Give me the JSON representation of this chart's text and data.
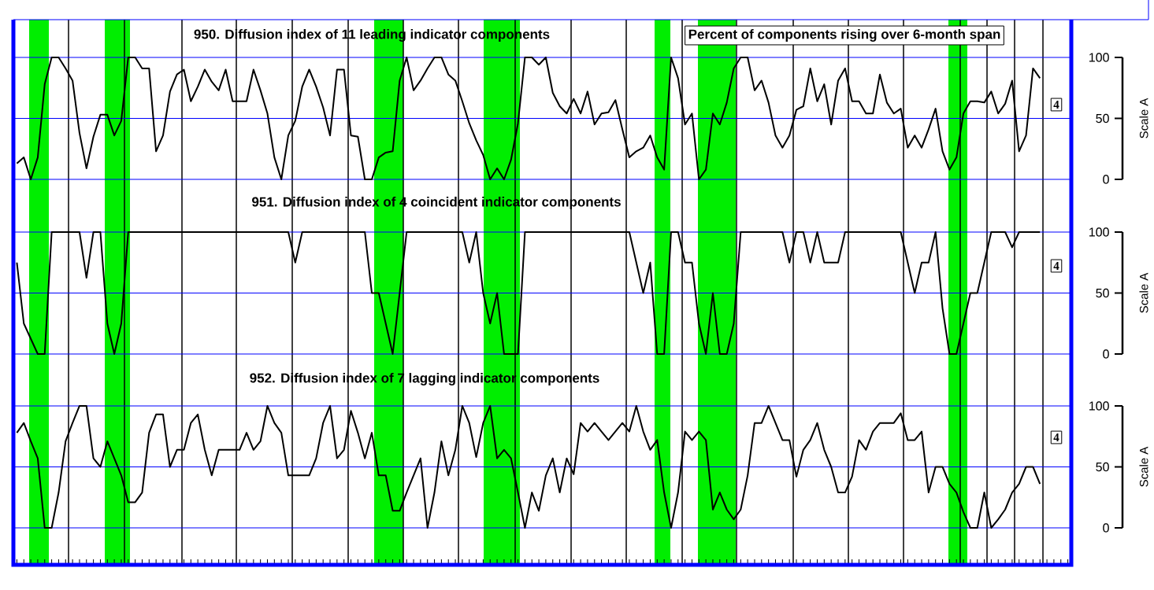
{
  "chart_data": [
    {
      "type": "line",
      "title": "950. Diffusion index of 11 leading indicator components",
      "subtitle": "Percent of components rising over 6-month span",
      "ylabel": "Scale A",
      "annotations": [
        "4"
      ],
      "categories": [
        null,
        null,
        null,
        null,
        null,
        null,
        null,
        null,
        null,
        null,
        null,
        null,
        null,
        null,
        null,
        null,
        null,
        null,
        null,
        null,
        null,
        null,
        null,
        null,
        null,
        null,
        null,
        null,
        null,
        null,
        null,
        null,
        null,
        null,
        null,
        null,
        null,
        null,
        null,
        null,
        null,
        null,
        null,
        null,
        null,
        null,
        null,
        null,
        null,
        null,
        null,
        null,
        null,
        null,
        null,
        null,
        null,
        null,
        null,
        null,
        null,
        null,
        null,
        null,
        null,
        null,
        null,
        null,
        null,
        null,
        null,
        null,
        null,
        null,
        null,
        null,
        null,
        null,
        null,
        null,
        null,
        null,
        null,
        null,
        null,
        null,
        null,
        null,
        null,
        null,
        null,
        null,
        null,
        null,
        null,
        null,
        null,
        null,
        null,
        null,
        null,
        null,
        null,
        null,
        null,
        null,
        null,
        null,
        null,
        null,
        null,
        null,
        null,
        null,
        null,
        null,
        null,
        null,
        null,
        null,
        null,
        null,
        null,
        null,
        null,
        null,
        null,
        null,
        null,
        null,
        null,
        null,
        null,
        null,
        null,
        null,
        null,
        null,
        null,
        null,
        null,
        null,
        null,
        null,
        null,
        null,
        null,
        null,
        null,
        null,
        null,
        null
      ],
      "ylim": [
        0,
        100
      ],
      "yticks": [
        0,
        50,
        100
      ],
      "tick_labels": "y",
      "ref_lines": [
        {
          "axis": "y",
          "value": 0,
          "color": "#0000ff"
        },
        {
          "axis": "y",
          "value": 50,
          "color": "#0000ff"
        },
        {
          "axis": "y",
          "value": 100,
          "color": "#0000ff"
        }
      ],
      "series": [
        {
          "color": "#000000",
          "values": [
            13,
            18,
            0,
            18,
            78,
            100,
            100,
            91,
            81,
            38,
            9,
            35,
            53,
            53,
            36,
            48,
            100,
            100,
            91,
            91,
            23,
            36,
            72,
            86,
            90,
            64,
            76,
            90,
            80,
            73,
            90,
            64,
            64,
            64,
            90,
            73,
            54,
            18,
            0,
            36,
            48,
            76,
            90,
            76,
            59,
            36,
            90,
            90,
            36,
            35,
            0,
            0,
            18,
            22,
            23,
            81,
            100,
            73,
            81,
            91,
            100,
            100,
            86,
            81,
            64,
            46,
            32,
            20,
            0,
            9,
            0,
            16,
            46,
            100,
            100,
            94,
            100,
            71,
            60,
            54,
            66,
            54,
            72,
            45,
            54,
            55,
            65,
            41,
            18,
            23,
            26,
            36,
            18,
            8,
            100,
            83,
            45,
            54,
            0,
            8,
            54,
            45,
            63,
            91,
            100,
            100,
            73,
            81,
            63,
            36,
            26,
            36,
            57,
            60,
            91,
            64,
            78,
            45,
            81,
            91,
            64,
            64,
            54,
            54,
            86,
            63,
            54,
            58,
            26,
            36,
            26,
            41,
            58,
            23,
            8,
            18,
            54,
            64,
            64,
            63,
            72,
            54,
            62,
            81,
            23,
            36,
            91,
            83,
            null,
            null,
            null,
            null
          ]
        }
      ]
    },
    {
      "type": "line",
      "title": "951. Diffusion index of 4 coincident indicator components",
      "ylabel": "Scale A",
      "annotations": [
        "4"
      ],
      "categories": [
        null,
        null,
        null,
        null,
        null,
        null,
        null,
        null,
        null,
        null,
        null,
        null,
        null,
        null,
        null,
        null,
        null,
        null,
        null,
        null,
        null,
        null,
        null,
        null,
        null,
        null,
        null,
        null,
        null,
        null,
        null,
        null,
        null,
        null,
        null,
        null,
        null,
        null,
        null,
        null,
        null,
        null,
        null,
        null,
        null,
        null,
        null,
        null,
        null,
        null,
        null,
        null,
        null,
        null,
        null,
        null,
        null,
        null,
        null,
        null,
        null,
        null,
        null,
        null,
        null,
        null,
        null,
        null,
        null,
        null,
        null,
        null,
        null,
        null,
        null,
        null,
        null,
        null,
        null,
        null,
        null,
        null,
        null,
        null,
        null,
        null,
        null,
        null,
        null,
        null,
        null,
        null,
        null,
        null,
        null,
        null,
        null,
        null,
        null,
        null,
        null,
        null,
        null,
        null,
        null,
        null,
        null,
        null,
        null,
        null,
        null,
        null,
        null,
        null,
        null,
        null,
        null,
        null,
        null,
        null,
        null,
        null,
        null,
        null,
        null,
        null,
        null,
        null,
        null,
        null,
        null,
        null,
        null,
        null,
        null,
        null,
        null,
        null,
        null,
        null,
        null,
        null,
        null,
        null,
        null,
        null,
        null,
        null,
        null,
        null,
        null,
        null
      ],
      "ylim": [
        0,
        100
      ],
      "yticks": [
        0,
        50,
        100
      ],
      "tick_labels": "y",
      "ref_lines": [
        {
          "axis": "y",
          "value": 0,
          "color": "#0000ff"
        },
        {
          "axis": "y",
          "value": 50,
          "color": "#0000ff"
        },
        {
          "axis": "y",
          "value": 100,
          "color": "#0000ff"
        }
      ],
      "series": [
        {
          "color": "#000000",
          "values": [
            75,
            25,
            12.5,
            0,
            0,
            100,
            100,
            100,
            100,
            100,
            62.5,
            100,
            100,
            25,
            0,
            25,
            100,
            100,
            100,
            100,
            100,
            100,
            100,
            100,
            100,
            100,
            100,
            100,
            100,
            100,
            100,
            100,
            100,
            100,
            100,
            100,
            100,
            100,
            100,
            100,
            75,
            100,
            100,
            100,
            100,
            100,
            100,
            100,
            100,
            100,
            100,
            50,
            50,
            25,
            0,
            50,
            100,
            100,
            100,
            100,
            100,
            100,
            100,
            100,
            100,
            75,
            100,
            50,
            25,
            50,
            0,
            0,
            0,
            100,
            100,
            100,
            100,
            100,
            100,
            100,
            100,
            100,
            100,
            100,
            100,
            100,
            100,
            100,
            100,
            75,
            50,
            75,
            0,
            0,
            100,
            100,
            75,
            75,
            25,
            0,
            50,
            0,
            0,
            25,
            100,
            100,
            100,
            100,
            100,
            100,
            100,
            75,
            100,
            100,
            75,
            100,
            75,
            75,
            75,
            100,
            100,
            100,
            100,
            100,
            100,
            100,
            100,
            100,
            75,
            50,
            75,
            75,
            100,
            37.5,
            0,
            0,
            25,
            50,
            50,
            75,
            100,
            100,
            100,
            87.5,
            100,
            100,
            100,
            100,
            null,
            null,
            null,
            null
          ]
        }
      ]
    },
    {
      "type": "line",
      "title": "952. Diffusion index of 7 lagging indicator components",
      "ylabel": "Scale A",
      "annotations": [
        "4"
      ],
      "categories": [
        null,
        null,
        null,
        null,
        null,
        null,
        null,
        null,
        null,
        null,
        null,
        null,
        null,
        null,
        null,
        null,
        null,
        null,
        null,
        null,
        null,
        null,
        null,
        null,
        null,
        null,
        null,
        null,
        null,
        null,
        null,
        null,
        null,
        null,
        null,
        null,
        null,
        null,
        null,
        null,
        null,
        null,
        null,
        null,
        null,
        null,
        null,
        null,
        null,
        null,
        null,
        null,
        null,
        null,
        null,
        null,
        null,
        null,
        null,
        null,
        null,
        null,
        null,
        null,
        null,
        null,
        null,
        null,
        null,
        null,
        null,
        null,
        null,
        null,
        null,
        null,
        null,
        null,
        null,
        null,
        null,
        null,
        null,
        null,
        null,
        null,
        null,
        null,
        null,
        null,
        null,
        null,
        null,
        null,
        null,
        null,
        null,
        null,
        null,
        null,
        null,
        null,
        null,
        null,
        null,
        null,
        null,
        null,
        null,
        null,
        null,
        null,
        null,
        null,
        null,
        null,
        null,
        null,
        null,
        null,
        null,
        null,
        null,
        null,
        null,
        null,
        null,
        null,
        null,
        null,
        null,
        null,
        null,
        null,
        null,
        null,
        null,
        null,
        null,
        null,
        null,
        null,
        null,
        null,
        null,
        null,
        null,
        null,
        null,
        null,
        null,
        null
      ],
      "ylim": [
        0,
        100
      ],
      "yticks": [
        0,
        50,
        100
      ],
      "tick_labels": "y",
      "ref_lines": [
        {
          "axis": "y",
          "value": 0,
          "color": "#0000ff"
        },
        {
          "axis": "y",
          "value": 50,
          "color": "#0000ff"
        },
        {
          "axis": "y",
          "value": 100,
          "color": "#0000ff"
        }
      ],
      "series": [
        {
          "color": "#000000",
          "values": [
            78,
            86,
            71,
            57,
            0,
            0,
            29,
            71,
            86,
            100,
            100,
            57,
            50,
            71,
            57,
            43,
            21,
            21,
            29,
            78,
            93,
            93,
            50,
            64,
            64,
            86,
            93,
            64,
            43,
            64,
            64,
            64,
            64,
            78,
            64,
            71,
            100,
            86,
            78,
            43,
            43,
            43,
            43,
            57,
            86,
            100,
            57,
            64,
            96,
            78,
            57,
            78,
            43,
            43,
            14,
            14,
            29,
            43,
            57,
            0,
            29,
            71,
            43,
            64,
            100,
            86,
            58,
            86,
            100,
            57,
            64,
            57,
            29,
            0,
            29,
            14,
            43,
            57,
            29,
            57,
            44,
            86,
            79,
            86,
            79,
            72,
            79,
            86,
            79,
            100,
            79,
            64,
            72,
            29,
            0,
            29,
            79,
            72,
            79,
            72,
            15,
            29,
            15,
            7,
            15,
            43,
            86,
            86,
            100,
            86,
            72,
            72,
            42,
            64,
            72,
            86,
            64,
            50,
            29,
            29,
            42,
            72,
            64,
            79,
            86,
            86,
            86,
            94,
            72,
            72,
            79,
            29,
            50,
            50,
            36,
            29,
            13,
            0,
            0,
            29,
            0,
            7,
            15,
            29,
            36,
            50,
            50,
            36,
            null,
            null,
            null,
            null
          ]
        }
      ]
    }
  ]
}
